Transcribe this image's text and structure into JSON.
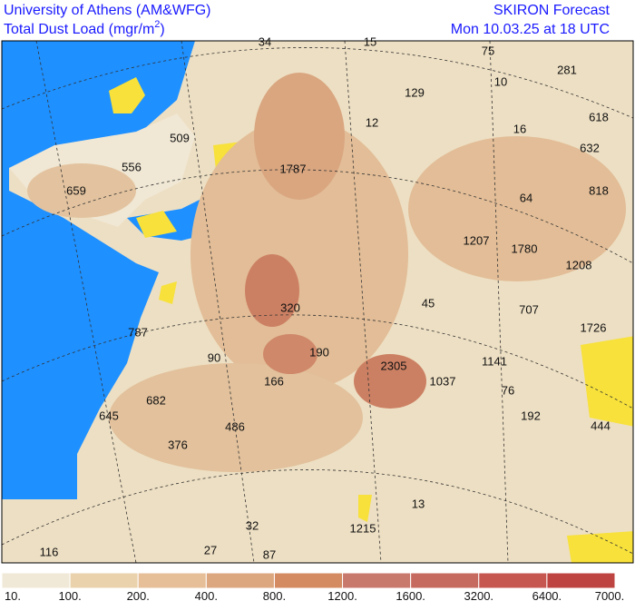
{
  "header": {
    "institution": "University of Athens (AM&WFG)",
    "variable": "Total Dust Load (mgr/m",
    "variable_superscript": "2",
    "variable_close": ")",
    "model": "SKIRON Forecast",
    "valid_time": "Mon 10.03.25 at 18 UTC"
  },
  "map": {
    "labels": [
      34,
      15,
      75,
      281,
      129,
      10,
      618,
      12,
      16,
      509,
      556,
      632,
      1787,
      659,
      64,
      818,
      1207,
      1780,
      1208,
      45,
      707,
      320,
      1726,
      787,
      190,
      90,
      2305,
      1141,
      166,
      1037,
      76,
      682,
      192,
      444,
      645,
      486,
      376,
      13,
      32,
      1215,
      27,
      87,
      116
    ]
  },
  "colorbar": {
    "levels": [
      "10.",
      "100.",
      "200.",
      "400.",
      "800.",
      "1200.",
      "1600.",
      "3200.",
      "6400.",
      "7000."
    ],
    "colors": [
      "#f1e9d7",
      "#ead3ac",
      "#e6bf98",
      "#dca67f",
      "#d48b62",
      "#c9786c",
      "#c6695e",
      "#c65650",
      "#bd4440"
    ]
  }
}
